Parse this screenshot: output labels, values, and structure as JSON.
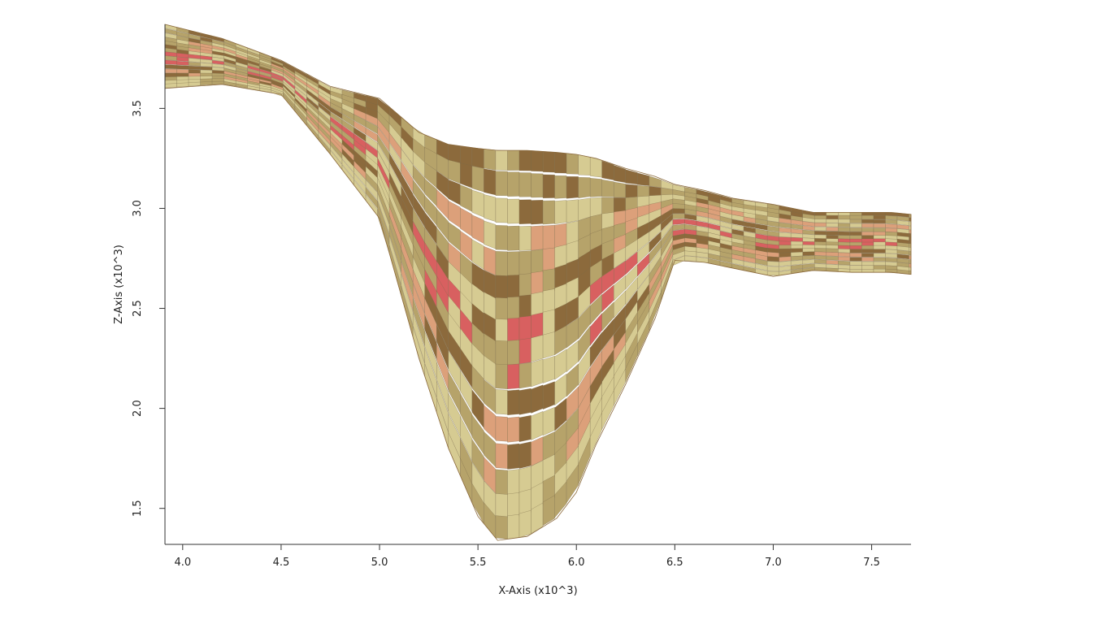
{
  "chart_data": {
    "type": "area",
    "xlabel": "X-Axis (x10^3)",
    "ylabel": "Z-Axis (x10^3)",
    "xlim": [
      3.91,
      7.7
    ],
    "ylim": [
      1.32,
      3.92
    ],
    "x_ticks": [
      "4.0",
      "4.5",
      "5.0",
      "5.5",
      "6.0",
      "6.5",
      "7.0",
      "7.5"
    ],
    "y_ticks": [
      "1.5",
      "2.0",
      "2.5",
      "3.0",
      "3.5"
    ],
    "surface_x": [
      3.91,
      4.2,
      4.5,
      4.75,
      5.0,
      5.2,
      5.35,
      5.5,
      5.6,
      5.75,
      5.9,
      6.0,
      6.1,
      6.25,
      6.4,
      6.5,
      6.65,
      6.8,
      7.0,
      7.2,
      7.4,
      7.6,
      7.7
    ],
    "surface_top": [
      3.92,
      3.85,
      3.74,
      3.61,
      3.55,
      3.38,
      3.32,
      3.3,
      3.29,
      3.29,
      3.28,
      3.27,
      3.25,
      3.2,
      3.16,
      3.12,
      3.09,
      3.05,
      3.02,
      2.98,
      2.98,
      2.98,
      2.97
    ],
    "surface_bottom": [
      3.6,
      3.62,
      3.57,
      3.27,
      2.95,
      2.25,
      1.8,
      1.46,
      1.34,
      1.36,
      1.45,
      1.58,
      1.82,
      2.12,
      2.45,
      2.74,
      2.73,
      2.7,
      2.66,
      2.69,
      2.68,
      2.68,
      2.67
    ],
    "colors": {
      "light": "#d6cb92",
      "tan": "#b6a36a",
      "brown": "#8c6a3c",
      "pink": "#dca07a",
      "red": "#d86060",
      "grid": "#7a6a48"
    }
  }
}
